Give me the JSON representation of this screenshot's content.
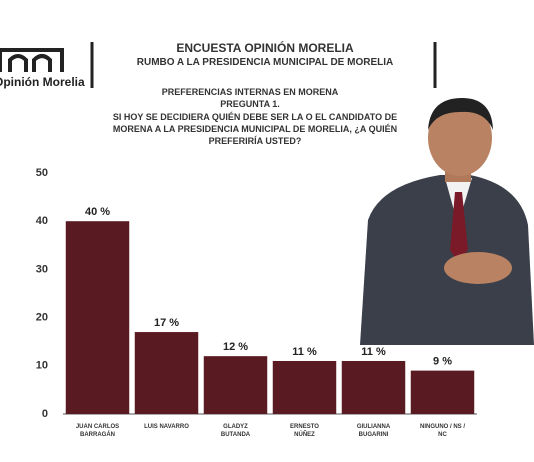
{
  "header": {
    "logo": "Opinión Morelia",
    "title": "ENCUESTA OPINIÓN MORELIA",
    "subtitle": "RUMBO A LA PRESIDENCIA MUNICIPAL DE MORELIA"
  },
  "question": {
    "topic": "PREFERENCIAS INTERNAS EN MORENA",
    "number": "PREGUNTA 1.",
    "text": "SI HOY SE DECIDIERA QUIÉN DEBE SER LA O EL CANDIDATO DE MORENA A LA PRESIDENCIA MUNICIPAL DE MORELIA, ¿A QUIÉN PREFERIRÍA USTED?"
  },
  "chart_data": {
    "type": "bar",
    "categories": [
      "JUAN CARLOS BARRAGÁN",
      "LUIS NAVARRO",
      "GLADYZ BUTANDA",
      "ERNESTO NÚÑEZ",
      "GIULIANNA BUGARINI",
      "NINGUNO / NS / NC"
    ],
    "values": [
      40,
      17,
      12,
      11,
      11,
      9
    ],
    "value_labels": [
      "40 %",
      "17 %",
      "12 %",
      "11 %",
      "11 %",
      "9 %"
    ],
    "color": "#5a1a22",
    "ylim": [
      0,
      50
    ],
    "yticks": [
      0,
      10,
      20,
      30,
      40,
      50
    ],
    "grid": false
  }
}
